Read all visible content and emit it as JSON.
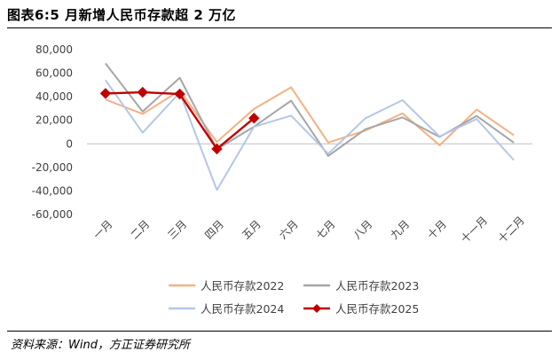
{
  "figure": {
    "title": "图表6:5 月新增人民币存款超 2 万亿",
    "source": "资料来源：Wind，方正证券研究所"
  },
  "chart_data": {
    "type": "line",
    "categories": [
      "一月",
      "二月",
      "三月",
      "四月",
      "五月",
      "六月",
      "七月",
      "八月",
      "九月",
      "十月",
      "十一月",
      "十二月"
    ],
    "ylim": [
      -60000,
      80000
    ],
    "yticks": [
      -60000,
      -40000,
      -20000,
      0,
      20000,
      40000,
      60000,
      80000
    ],
    "ytick_labels": [
      "-60,000",
      "-40,000",
      "-20,000",
      "0",
      "20,000",
      "40,000",
      "60,000",
      "80,000"
    ],
    "grid": false,
    "legend_position": "bottom",
    "series": [
      {
        "name": "人民币存款2022",
        "color": "#f4b183",
        "marker": false,
        "values": [
          37600,
          25400,
          45300,
          1600,
          29700,
          48000,
          1100,
          11300,
          25900,
          -1200,
          29100,
          7300
        ]
      },
      {
        "name": "人民币存款2023",
        "color": "#a6a6a6",
        "marker": false,
        "values": [
          68300,
          27400,
          56100,
          -4600,
          14600,
          36700,
          -10300,
          12400,
          22500,
          5900,
          23700,
          1000
        ]
      },
      {
        "name": "人民币存款2024",
        "color": "#b4c7e7",
        "marker": false,
        "values": [
          54100,
          9500,
          43500,
          -39200,
          14500,
          24000,
          -8400,
          21700,
          37100,
          6300,
          21100,
          -13800
        ]
      },
      {
        "name": "人民币存款2025",
        "color": "#c00000",
        "marker": true,
        "values": [
          42800,
          43800,
          42300,
          -4300,
          21800,
          null,
          null,
          null,
          null,
          null,
          null,
          null
        ]
      }
    ]
  }
}
